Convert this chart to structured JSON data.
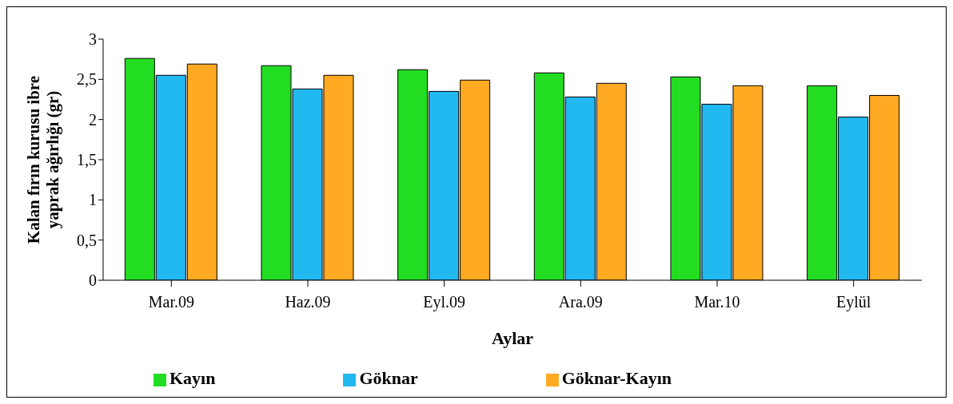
{
  "chart_data": {
    "type": "bar",
    "xlabel": "Aylar",
    "ylabel": "Kalan fırın kurusu ibre yaprak ağırlığı (gr)",
    "categories": [
      "Mar.09",
      "Haz.09",
      "Eyl.09",
      "Ara.09",
      "Mar.10",
      "Eylül"
    ],
    "series": [
      {
        "name": "Kayın",
        "color": "#22dd22",
        "values": [
          2.76,
          2.67,
          2.62,
          2.58,
          2.53,
          2.42
        ]
      },
      {
        "name": "Göknar",
        "color": "#22b8f0",
        "values": [
          2.55,
          2.38,
          2.35,
          2.28,
          2.19,
          2.03
        ]
      },
      {
        "name": "Göknar-Kayın",
        "color": "#ffaa22",
        "values": [
          2.69,
          2.55,
          2.49,
          2.45,
          2.42,
          2.3
        ]
      }
    ],
    "ylim": [
      0,
      3
    ],
    "yticks": [
      0,
      {
        "value": 0.5,
        "label": "0,5"
      },
      1,
      {
        "value": 1.5,
        "label": "1,5"
      },
      2,
      {
        "value": 2.5,
        "label": "2,5"
      },
      3
    ],
    "grid": false,
    "legend": "bottom"
  }
}
